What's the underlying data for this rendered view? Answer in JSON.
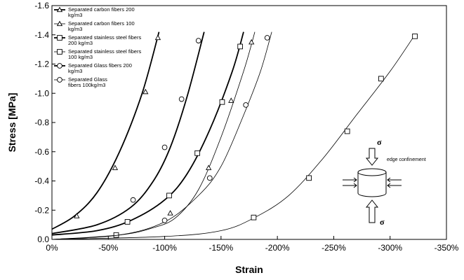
{
  "chart_data": {
    "type": "line",
    "xlabel": "Strain",
    "ylabel": "Stress [MPa]",
    "xlim": [
      0,
      -350
    ],
    "ylim": [
      0,
      -1.6
    ],
    "x_ticks": [
      0,
      -50,
      -100,
      -150,
      -200,
      -250,
      -300,
      -350
    ],
    "x_tick_labels": [
      "0%",
      "-50%",
      "-100%",
      "-150%",
      "-200%",
      "-250%",
      "-300%",
      "-350%"
    ],
    "y_ticks": [
      0,
      -0.2,
      -0.4,
      -0.6,
      -0.8,
      -1.0,
      -1.2,
      -1.4,
      -1.6
    ],
    "y_tick_labels": [
      "0.0",
      "-0.2",
      "-0.4",
      "-0.6",
      "-0.8",
      "-1.0",
      "-1.2",
      "-1.4",
      "-1.6"
    ],
    "legend_position": "top-left",
    "series": [
      {
        "name": "Separated carbon fibers 200 kg/m3",
        "marker": "triangle",
        "weight": "bold",
        "x": [
          0,
          -20,
          -40,
          -60,
          -80,
          -95
        ],
        "y": [
          -0.07,
          -0.16,
          -0.32,
          -0.6,
          -1.0,
          -1.42
        ],
        "marker_points": [
          [
            -22,
            -0.16
          ],
          [
            -56,
            -0.49
          ],
          [
            -83,
            -1.01
          ],
          [
            -94,
            -1.38
          ]
        ]
      },
      {
        "name": "Separated carbon fibers 100 kg/m3",
        "marker": "triangle",
        "weight": "thin",
        "x": [
          0,
          -60,
          -90,
          -110,
          -130,
          -150,
          -170,
          -180
        ],
        "y": [
          0,
          -0.03,
          -0.08,
          -0.15,
          -0.34,
          -0.7,
          -1.15,
          -1.42
        ],
        "marker_points": [
          [
            -105,
            -0.18
          ],
          [
            -139,
            -0.49
          ],
          [
            -159,
            -0.95
          ],
          [
            -177,
            -1.35
          ]
        ]
      },
      {
        "name": "Separated stainless steel fibers 200 kg/m3",
        "marker": "square",
        "weight": "bold",
        "x": [
          0,
          -40,
          -70,
          -100,
          -120,
          -140,
          -160,
          -170
        ],
        "y": [
          -0.03,
          -0.06,
          -0.13,
          -0.27,
          -0.45,
          -0.75,
          -1.15,
          -1.42
        ],
        "marker_points": [
          [
            -67,
            -0.12
          ],
          [
            -104,
            -0.3
          ],
          [
            -129,
            -0.59
          ],
          [
            -151,
            -0.94
          ],
          [
            -167,
            -1.32
          ]
        ]
      },
      {
        "name": "Separated stainless steel fibers 100 kg/m3",
        "marker": "square",
        "weight": "thin",
        "x": [
          0,
          -100,
          -150,
          -180,
          -210,
          -240,
          -270,
          -300,
          -322
        ],
        "y": [
          0,
          -0.02,
          -0.06,
          -0.15,
          -0.3,
          -0.55,
          -0.85,
          -1.15,
          -1.4
        ],
        "marker_points": [
          [
            -57,
            -0.03
          ],
          [
            -179,
            -0.15
          ],
          [
            -228,
            -0.42
          ],
          [
            -262,
            -0.74
          ],
          [
            -292,
            -1.1
          ],
          [
            -322,
            -1.39
          ]
        ]
      },
      {
        "name": "Separated Glass fibers 200 kg/m3",
        "marker": "circle",
        "weight": "bold",
        "x": [
          0,
          -40,
          -70,
          -90,
          -105,
          -120,
          -135
        ],
        "y": [
          -0.04,
          -0.1,
          -0.22,
          -0.4,
          -0.63,
          -0.98,
          -1.42
        ],
        "marker_points": [
          [
            -72,
            -0.27
          ],
          [
            -100,
            -0.63
          ],
          [
            -115,
            -0.96
          ],
          [
            -130,
            -1.36
          ]
        ]
      },
      {
        "name": "Separated Glass fibers 100kg/m3",
        "marker": "circle",
        "weight": "thin",
        "x": [
          0,
          -60,
          -100,
          -130,
          -150,
          -170,
          -185,
          -195
        ],
        "y": [
          0,
          -0.03,
          -0.12,
          -0.3,
          -0.5,
          -0.85,
          -1.15,
          -1.42
        ],
        "marker_points": [
          [
            -100,
            -0.13
          ],
          [
            -140,
            -0.42
          ],
          [
            -172,
            -0.92
          ],
          [
            -191,
            -1.38
          ]
        ]
      }
    ],
    "inset": {
      "sigma_top": "σ",
      "sigma_bottom": "σ",
      "caption": "edge confinement"
    }
  }
}
